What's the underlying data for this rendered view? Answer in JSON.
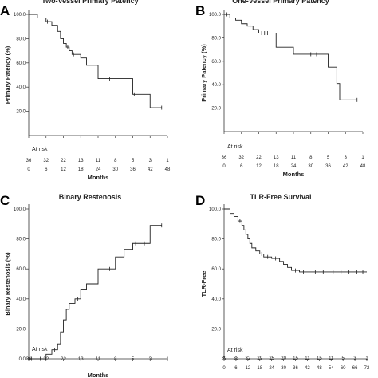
{
  "chart_data": [
    {
      "type": "line",
      "panel_letter": "A",
      "title": "Two-Vessel Primary Patency",
      "xlabel": "Months",
      "ylabel": "Primary Patency (%)",
      "xlim": [
        0,
        48
      ],
      "ylim": [
        0,
        100
      ],
      "xticks": [
        0,
        6,
        12,
        18,
        24,
        30,
        36,
        42,
        48
      ],
      "yticks": [
        20,
        40,
        60,
        80,
        100
      ],
      "ytick_labels": [
        "20.0",
        "40.0",
        "60.0",
        "80.0",
        "100.0"
      ],
      "series": [
        {
          "x": [
            0,
            3,
            6,
            8,
            10,
            11,
            12,
            13,
            14,
            15,
            18,
            20,
            24,
            30,
            36,
            42,
            46
          ],
          "y": [
            100,
            97,
            94,
            91,
            86,
            80,
            76,
            73,
            70,
            67,
            64,
            58,
            47,
            47,
            34,
            23,
            23
          ]
        }
      ],
      "censor_marks": [
        {
          "x": 6.5,
          "y": 94
        },
        {
          "x": 13.5,
          "y": 73
        },
        {
          "x": 15.5,
          "y": 67
        },
        {
          "x": 28,
          "y": 47
        },
        {
          "x": 36.5,
          "y": 34
        },
        {
          "x": 46,
          "y": 23
        }
      ],
      "at_risk_label": "At risk",
      "at_risk": {
        "x": [
          0,
          6,
          12,
          18,
          24,
          30,
          36,
          42,
          48
        ],
        "values": [
          "36",
          "32",
          "22",
          "13",
          "11",
          "8",
          "5",
          "3",
          "1"
        ]
      }
    },
    {
      "type": "line",
      "panel_letter": "B",
      "title": "One-Vessel Primary Patency",
      "xlabel": "Months",
      "ylabel": "Primary Patency (%)",
      "xlim": [
        0,
        48
      ],
      "ylim": [
        0,
        100
      ],
      "xticks": [
        0,
        6,
        12,
        18,
        24,
        30,
        36,
        42,
        48
      ],
      "yticks": [
        20,
        40,
        60,
        80,
        100
      ],
      "ytick_labels": [
        "20.0",
        "40.0",
        "60.0",
        "80.0",
        "100.0"
      ],
      "series": [
        {
          "x": [
            0,
            2,
            4,
            6,
            8,
            10,
            12,
            18,
            24,
            36,
            39,
            40,
            46
          ],
          "y": [
            100,
            97,
            95,
            92,
            90,
            87,
            84,
            72,
            66,
            55,
            41,
            27,
            27
          ]
        }
      ],
      "censor_marks": [
        {
          "x": 1,
          "y": 100
        },
        {
          "x": 9,
          "y": 90
        },
        {
          "x": 13,
          "y": 84
        },
        {
          "x": 14,
          "y": 84
        },
        {
          "x": 15,
          "y": 84
        },
        {
          "x": 20,
          "y": 72
        },
        {
          "x": 30,
          "y": 66
        },
        {
          "x": 32,
          "y": 66
        },
        {
          "x": 46,
          "y": 27
        }
      ],
      "at_risk_label": "At risk",
      "at_risk": {
        "x": [
          0,
          6,
          12,
          18,
          24,
          30,
          36,
          42,
          48
        ],
        "values": [
          "36",
          "32",
          "22",
          "13",
          "11",
          "8",
          "5",
          "3",
          "1"
        ]
      }
    },
    {
      "type": "line",
      "panel_letter": "C",
      "title": "Binary Restenosis",
      "xlabel": "Months",
      "ylabel": "Binary Restenosis (%)",
      "xlim": [
        0,
        48
      ],
      "ylim": [
        0,
        100
      ],
      "xticks": [
        0,
        6,
        12,
        18,
        24,
        30,
        36,
        42,
        48
      ],
      "yticks": [
        0,
        20,
        40,
        60,
        80,
        100
      ],
      "ytick_labels": [
        "0.0",
        "20.0",
        "40.0",
        "60.0",
        "80.0",
        "100.0"
      ],
      "series": [
        {
          "x": [
            0,
            6,
            8,
            10,
            11,
            12,
            13,
            14,
            16,
            18,
            20,
            24,
            30,
            33,
            36,
            42,
            46
          ],
          "y": [
            0,
            3,
            6,
            10,
            18,
            26,
            33,
            37,
            40,
            46,
            50,
            60,
            68,
            73,
            77,
            89,
            89
          ]
        }
      ],
      "censor_marks": [
        {
          "x": 1,
          "y": 0
        },
        {
          "x": 4,
          "y": 0
        },
        {
          "x": 9,
          "y": 6
        },
        {
          "x": 17,
          "y": 40
        },
        {
          "x": 28,
          "y": 60
        },
        {
          "x": 37,
          "y": 77
        },
        {
          "x": 40,
          "y": 77
        },
        {
          "x": 46,
          "y": 89
        }
      ],
      "at_risk_label": "At risk",
      "at_risk": {
        "x": [
          0,
          6,
          12,
          18,
          24,
          30,
          36,
          42,
          48
        ],
        "values": [
          "36",
          "32",
          "22",
          "13",
          "11",
          "8",
          "5",
          "3",
          "1"
        ]
      }
    },
    {
      "type": "line",
      "panel_letter": "D",
      "title": "TLR-Free Survival",
      "xlabel": "",
      "ylabel": "TLR-Free",
      "xlim": [
        0,
        72
      ],
      "ylim": [
        0,
        100
      ],
      "xticks": [
        0,
        6,
        12,
        18,
        24,
        30,
        36,
        42,
        48,
        54,
        60,
        66,
        72
      ],
      "yticks": [
        20,
        40,
        60,
        80,
        100
      ],
      "ytick_labels": [
        "20.0",
        "40.0",
        "60.0",
        "80.0",
        "100.0"
      ],
      "series": [
        {
          "x": [
            0,
            3,
            5,
            7,
            9,
            10,
            11,
            12,
            13,
            14,
            16,
            18,
            20,
            24,
            28,
            30,
            32,
            34,
            38,
            72
          ],
          "y": [
            100,
            97,
            95,
            92,
            89,
            86,
            83,
            80,
            77,
            74,
            72,
            70,
            68,
            67,
            65,
            63,
            61,
            59,
            58,
            58
          ]
        }
      ],
      "censor_marks": [
        {
          "x": 8,
          "y": 92
        },
        {
          "x": 19,
          "y": 70
        },
        {
          "x": 22,
          "y": 68
        },
        {
          "x": 26,
          "y": 67
        },
        {
          "x": 36,
          "y": 59
        },
        {
          "x": 40,
          "y": 58
        },
        {
          "x": 46,
          "y": 58
        },
        {
          "x": 50,
          "y": 58
        },
        {
          "x": 55,
          "y": 58
        },
        {
          "x": 59,
          "y": 58
        },
        {
          "x": 63,
          "y": 58
        },
        {
          "x": 67,
          "y": 58
        },
        {
          "x": 70,
          "y": 58
        }
      ],
      "at_risk_label": "At risk",
      "at_risk": {
        "x": [
          0,
          6,
          12,
          18,
          24,
          30,
          36,
          42,
          48,
          54,
          60,
          66,
          72
        ],
        "values": [
          "39",
          "38",
          "32",
          "29",
          "25",
          "20",
          "15",
          "11",
          "15",
          "11",
          "5",
          "3",
          "1"
        ]
      }
    }
  ]
}
